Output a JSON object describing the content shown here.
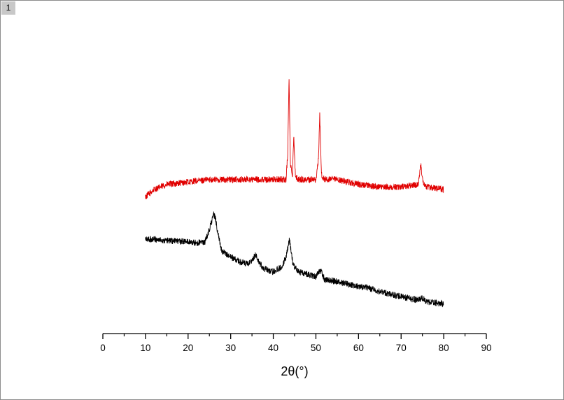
{
  "window": {
    "layer_label": "1"
  },
  "chart_data": {
    "type": "line",
    "title": "",
    "xlabel": "2θ(°)",
    "ylabel": "",
    "xlim": [
      0,
      90
    ],
    "xticks": [
      0,
      10,
      20,
      30,
      40,
      50,
      60,
      70,
      80,
      90
    ],
    "xtick_labels": [
      "0",
      "10",
      "20",
      "30",
      "40",
      "50",
      "60",
      "70",
      "80",
      "90"
    ],
    "y_axis_visible": false,
    "ylim": [
      0,
      100
    ],
    "grid": false,
    "legend": "none",
    "series": [
      {
        "color": "#e00000",
        "x": [
          10,
          12,
          15,
          20,
          25,
          30,
          35,
          40,
          43,
          43.4,
          43.7,
          44,
          44.5,
          44.8,
          45.2,
          46,
          50,
          50.6,
          50.9,
          51.3,
          52,
          55,
          60,
          65,
          70,
          74,
          74.6,
          75.2,
          76,
          80
        ],
        "y": [
          47,
          50,
          52,
          53,
          54,
          54,
          54,
          54,
          54,
          65,
          96,
          60,
          56,
          72,
          55,
          54,
          54,
          62,
          80,
          56,
          54,
          54,
          52,
          51,
          51,
          52,
          60,
          53,
          51,
          50
        ]
      },
      {
        "color": "#000000",
        "x": [
          10,
          12,
          15,
          20,
          22,
          24,
          25,
          26,
          26.5,
          27,
          28,
          30,
          32,
          34,
          35,
          35.8,
          36.8,
          38,
          40,
          42,
          43,
          43.8,
          44.6,
          46,
          48,
          50,
          51,
          52,
          55,
          60,
          62,
          65,
          70,
          74,
          75,
          76,
          80
        ],
        "y": [
          30,
          30,
          29.5,
          29,
          28.5,
          29,
          34,
          40,
          38,
          32,
          25,
          23,
          21,
          20,
          21,
          24,
          20,
          18,
          17,
          19,
          23,
          30,
          20,
          17,
          16,
          15,
          18,
          14,
          13,
          11,
          10.5,
          9,
          7,
          5.5,
          6.5,
          5,
          4
        ]
      }
    ]
  }
}
